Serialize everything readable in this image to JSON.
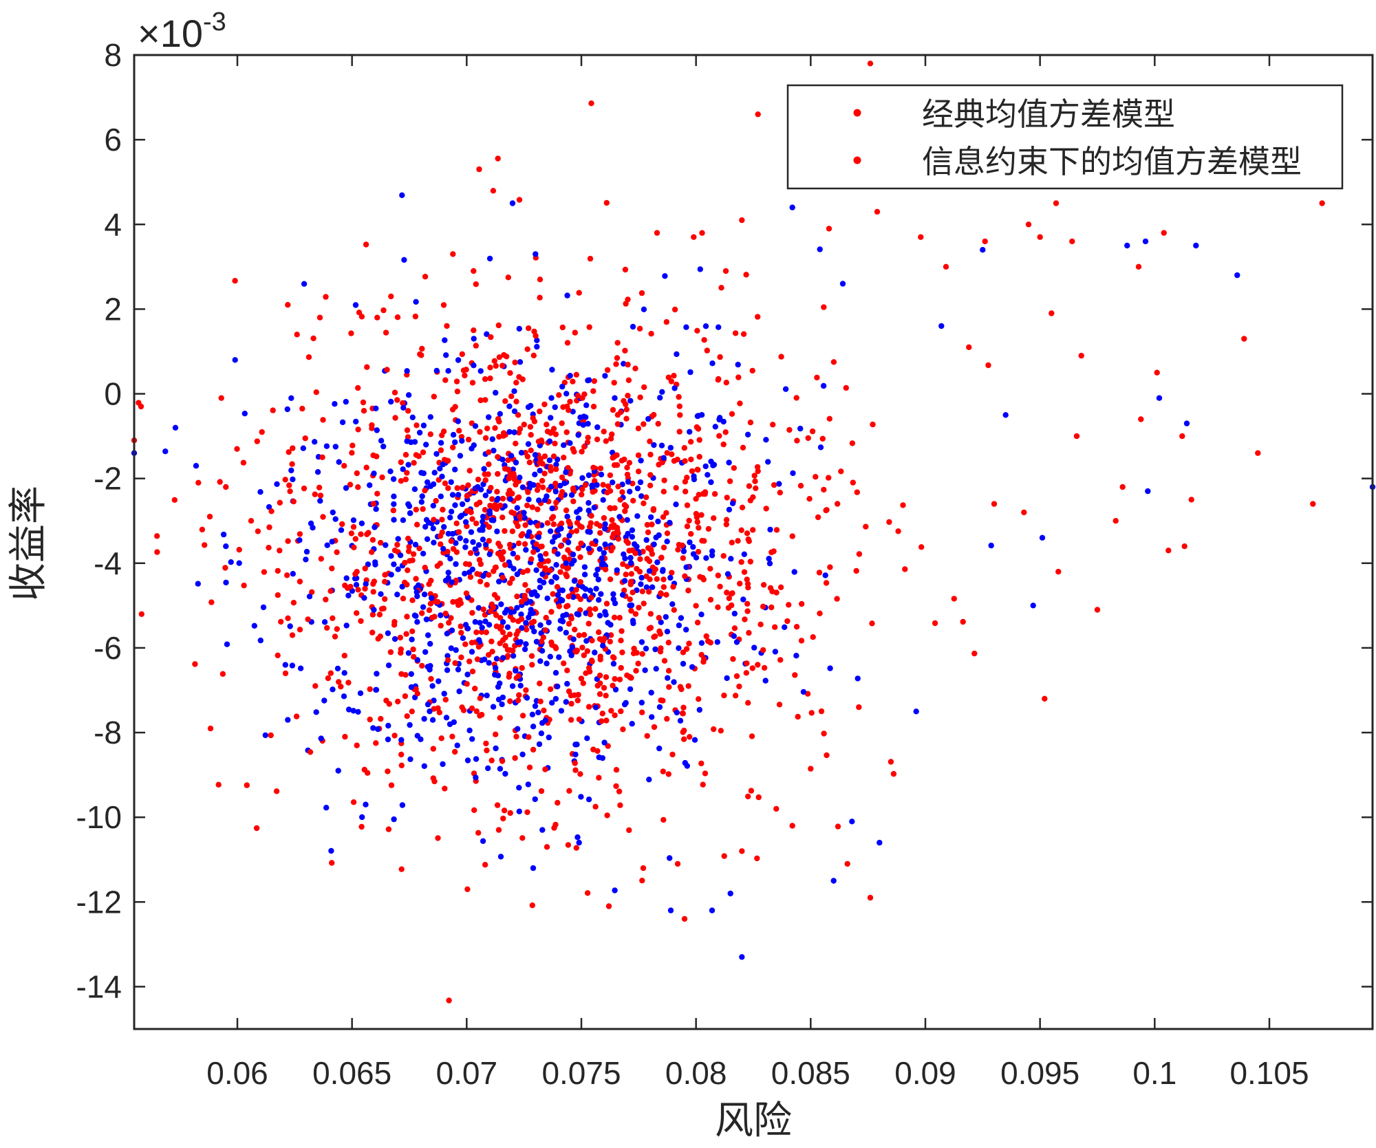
{
  "chart_data": {
    "type": "scatter",
    "xlabel": "风险",
    "ylabel": "收益率",
    "y_exponent_label": "×10",
    "y_exponent_power": "-3",
    "xlim": [
      0.0555,
      0.1095
    ],
    "ylim": [
      -15,
      8
    ],
    "x_ticks": [
      0.06,
      0.065,
      0.07,
      0.075,
      0.08,
      0.085,
      0.09,
      0.095,
      0.1,
      0.105
    ],
    "x_tick_labels": [
      "0.06",
      "0.065",
      "0.07",
      "0.075",
      "0.08",
      "0.085",
      "0.09",
      "0.095",
      "0.1",
      "0.105"
    ],
    "y_ticks": [
      8,
      6,
      4,
      2,
      0,
      -2,
      -4,
      -6,
      -8,
      -10,
      -12,
      -14
    ],
    "y_tick_labels": [
      "8",
      "6",
      "4",
      "2",
      "0",
      "-2",
      "-4",
      "-6",
      "-8",
      "-10",
      "-12",
      "-14"
    ],
    "grid": false,
    "legend_placement": "top-right",
    "legend": [
      "经典均值方差模型",
      "信息约束下的均值方差模型"
    ],
    "series": [
      {
        "name": "经典均值方差模型",
        "color": "#ff0000",
        "cloud": {
          "center": [
            0.0735,
            -3.8
          ],
          "spread": [
            0.006,
            2.8
          ],
          "count": 1400
        },
        "points": [
          [
            0.0555,
            -1.1
          ],
          [
            0.0558,
            -0.3
          ],
          [
            0.0593,
            -0.1
          ],
          [
            0.0583,
            -2.1
          ],
          [
            0.0588,
            -2.9
          ],
          [
            0.0595,
            -2.2
          ],
          [
            0.0606,
            -3.0
          ],
          [
            0.0622,
            2.1
          ],
          [
            0.0626,
            1.4
          ],
          [
            0.0621,
            -6.6
          ],
          [
            0.0624,
            -5.7
          ],
          [
            0.0636,
            1.8
          ],
          [
            0.0634,
            -6.9
          ],
          [
            0.0661,
            1.8
          ],
          [
            0.0667,
            2.3
          ],
          [
            0.0694,
            3.3
          ],
          [
            0.0703,
            2.9
          ],
          [
            0.0714,
            -10.3
          ],
          [
            0.0719,
            -9.9
          ],
          [
            0.0732,
            2.7
          ],
          [
            0.0735,
            -10.7
          ],
          [
            0.0762,
            -12.1
          ],
          [
            0.0777,
            -11.2
          ],
          [
            0.0795,
            -12.4
          ],
          [
            0.0792,
            -11.1
          ],
          [
            0.0783,
            3.8
          ],
          [
            0.0799,
            3.7
          ],
          [
            0.0813,
            2.9
          ],
          [
            0.082,
            4.1
          ],
          [
            0.082,
            -10.8
          ],
          [
            0.0827,
            6.6
          ],
          [
            0.0835,
            -9.8
          ],
          [
            0.0842,
            -10.2
          ],
          [
            0.0844,
            5.1
          ],
          [
            0.0858,
            3.9
          ],
          [
            0.0866,
            -11.1
          ],
          [
            0.0871,
            -7.4
          ],
          [
            0.0876,
            -11.9
          ],
          [
            0.0876,
            7.8
          ],
          [
            0.0879,
            4.3
          ],
          [
            0.0898,
            3.7
          ],
          [
            0.0909,
            3.0
          ],
          [
            0.0919,
            1.1
          ],
          [
            0.0926,
            3.6
          ],
          [
            0.0945,
            4.0
          ],
          [
            0.095,
            3.7
          ],
          [
            0.0952,
            -7.2
          ],
          [
            0.0955,
            1.9
          ],
          [
            0.0957,
            4.5
          ],
          [
            0.0958,
            -4.2
          ],
          [
            0.0964,
            3.6
          ],
          [
            0.0966,
            -1.0
          ],
          [
            0.0968,
            0.9
          ],
          [
            0.0975,
            -5.1
          ],
          [
            0.0983,
            -3.0
          ],
          [
            0.0986,
            -2.2
          ],
          [
            0.0993,
            3.0
          ],
          [
            0.0994,
            -0.6
          ],
          [
            0.1001,
            0.5
          ],
          [
            0.1004,
            3.8
          ],
          [
            0.1006,
            -3.7
          ],
          [
            0.1012,
            -1.0
          ],
          [
            0.1013,
            -3.6
          ],
          [
            0.1016,
            -2.5
          ],
          [
            0.1039,
            1.3
          ],
          [
            0.1045,
            -1.4
          ],
          [
            0.1069,
            -2.6
          ],
          [
            0.1073,
            4.5
          ],
          [
            0.0943,
            -2.8
          ],
          [
            0.093,
            -2.6
          ]
        ]
      },
      {
        "name": "信息约束下的均值方差模型",
        "color": "#0000ff",
        "cloud": {
          "center": [
            0.0725,
            -3.9
          ],
          "spread": [
            0.005,
            2.6
          ],
          "count": 900
        },
        "points": [
          [
            0.0555,
            -1.4
          ],
          [
            0.0573,
            -0.8
          ],
          [
            0.0582,
            -1.7
          ],
          [
            0.0595,
            -3.6
          ],
          [
            0.0599,
            0.8
          ],
          [
            0.0622,
            -7.7
          ],
          [
            0.0644,
            -8.9
          ],
          [
            0.072,
            4.5
          ],
          [
            0.073,
            3.3
          ],
          [
            0.0729,
            -11.2
          ],
          [
            0.0733,
            -10.3
          ],
          [
            0.0749,
            -10.6
          ],
          [
            0.0789,
            -12.2
          ],
          [
            0.0807,
            -12.2
          ],
          [
            0.0815,
            -11.8
          ],
          [
            0.082,
            -13.3
          ],
          [
            0.0842,
            4.4
          ],
          [
            0.086,
            -11.5
          ],
          [
            0.0868,
            -10.1
          ],
          [
            0.088,
            -10.6
          ],
          [
            0.0896,
            -7.5
          ],
          [
            0.0988,
            3.5
          ],
          [
            0.0996,
            3.6
          ],
          [
            0.1018,
            3.5
          ],
          [
            0.1036,
            2.8
          ],
          [
            0.0997,
            -2.3
          ],
          [
            0.1002,
            -0.1
          ],
          [
            0.1014,
            -0.7
          ],
          [
            0.0947,
            -5.0
          ],
          [
            0.0951,
            -3.4
          ],
          [
            0.0935,
            -0.5
          ],
          [
            0.0925,
            3.4
          ],
          [
            0.0907,
            1.6
          ],
          [
            0.0864,
            2.6
          ],
          [
            0.1095,
            -2.2
          ]
        ]
      }
    ]
  }
}
